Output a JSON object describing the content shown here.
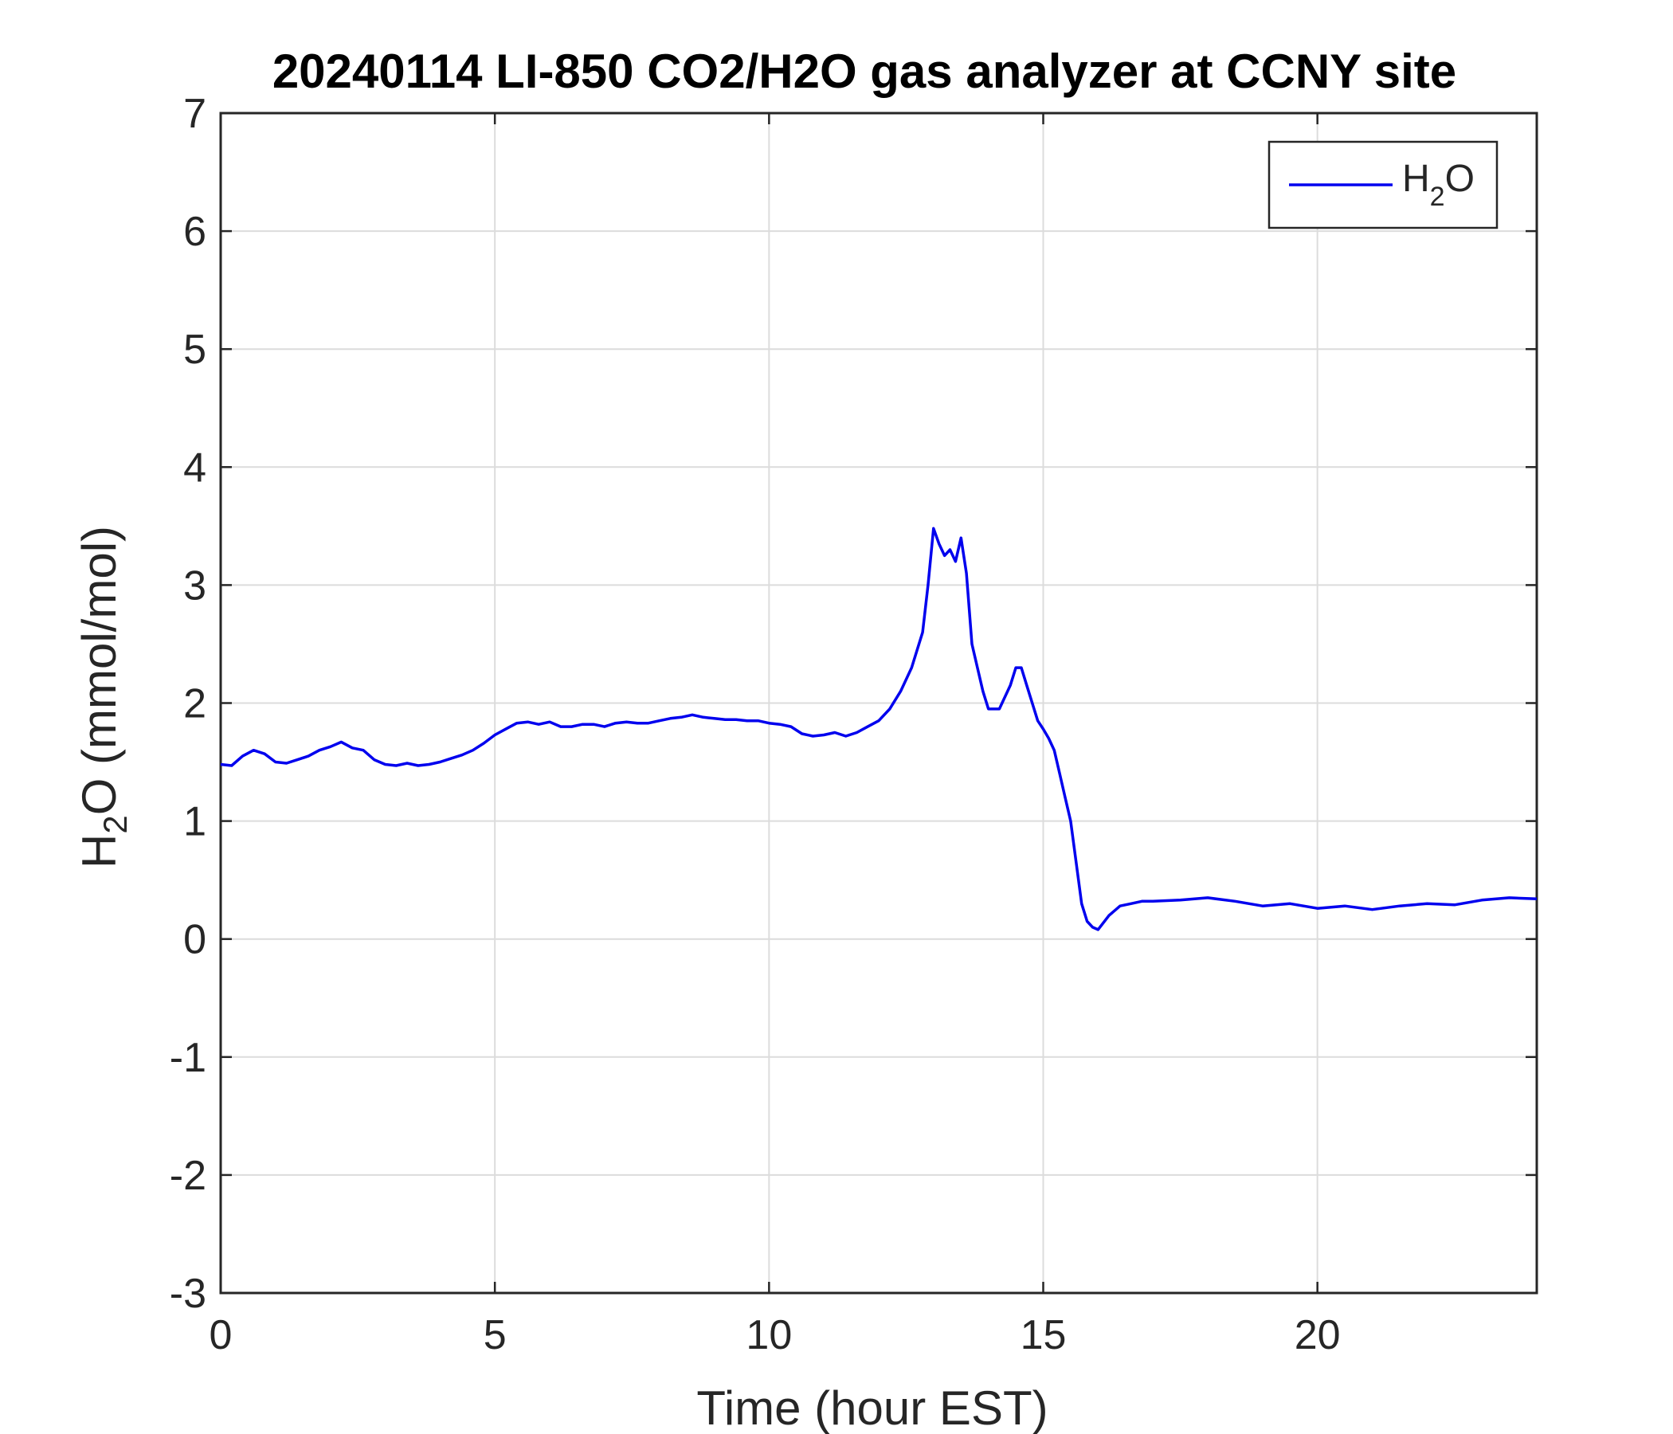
{
  "chart_data": {
    "type": "line",
    "title": "20240114 LI-850 CO2/H2O gas analyzer at CCNY site",
    "xlabel": "Time (hour EST)",
    "ylabel_main": "H",
    "ylabel_sub": "2",
    "ylabel_rest": "O (mmol/mol)",
    "xlim": [
      0,
      24
    ],
    "ylim": [
      -3,
      7
    ],
    "xticks": [
      "0",
      "5",
      "10",
      "15",
      "20"
    ],
    "yticks": [
      "-3",
      "-2",
      "-1",
      "0",
      "1",
      "2",
      "3",
      "4",
      "5",
      "6",
      "7"
    ],
    "grid": true,
    "legend_position": "top-right",
    "line_color": "#0000ee",
    "series": [
      {
        "legend_main": "H",
        "legend_sub": "2",
        "legend_rest": "O",
        "x": [
          0,
          0.2,
          0.4,
          0.6,
          0.8,
          1.0,
          1.2,
          1.4,
          1.6,
          1.8,
          2.0,
          2.2,
          2.4,
          2.6,
          2.8,
          3.0,
          3.2,
          3.4,
          3.6,
          3.8,
          4.0,
          4.2,
          4.4,
          4.6,
          4.8,
          5.0,
          5.2,
          5.4,
          5.6,
          5.8,
          6.0,
          6.2,
          6.4,
          6.6,
          6.8,
          7.0,
          7.2,
          7.4,
          7.6,
          7.8,
          8.0,
          8.2,
          8.4,
          8.6,
          8.8,
          9.0,
          9.2,
          9.4,
          9.6,
          9.8,
          10.0,
          10.2,
          10.4,
          10.6,
          10.8,
          11.0,
          11.2,
          11.4,
          11.6,
          11.8,
          12.0,
          12.2,
          12.4,
          12.6,
          12.8,
          12.9,
          13.0,
          13.1,
          13.2,
          13.3,
          13.4,
          13.5,
          13.6,
          13.7,
          13.8,
          13.9,
          14.0,
          14.2,
          14.4,
          14.5,
          14.6,
          14.7,
          14.8,
          14.9,
          15.0,
          15.1,
          15.2,
          15.3,
          15.4,
          15.5,
          15.6,
          15.7,
          15.8,
          15.9,
          16.0,
          16.2,
          16.4,
          16.6,
          16.8,
          17.0,
          17.5,
          18.0,
          18.5,
          19.0,
          19.5,
          20.0,
          20.5,
          21.0,
          21.5,
          22.0,
          22.5,
          23.0,
          23.5,
          24.0
        ],
        "y": [
          1.48,
          1.47,
          1.55,
          1.6,
          1.57,
          1.5,
          1.49,
          1.52,
          1.55,
          1.6,
          1.63,
          1.67,
          1.62,
          1.6,
          1.52,
          1.48,
          1.47,
          1.49,
          1.47,
          1.48,
          1.5,
          1.53,
          1.56,
          1.6,
          1.66,
          1.73,
          1.78,
          1.83,
          1.84,
          1.82,
          1.84,
          1.8,
          1.8,
          1.82,
          1.82,
          1.8,
          1.83,
          1.84,
          1.83,
          1.83,
          1.85,
          1.87,
          1.88,
          1.9,
          1.88,
          1.87,
          1.86,
          1.86,
          1.85,
          1.85,
          1.83,
          1.82,
          1.8,
          1.74,
          1.72,
          1.73,
          1.75,
          1.72,
          1.75,
          1.8,
          1.85,
          1.95,
          2.1,
          2.3,
          2.6,
          3.0,
          3.48,
          3.35,
          3.25,
          3.3,
          3.2,
          3.4,
          3.1,
          2.5,
          2.3,
          2.1,
          1.95,
          1.95,
          2.15,
          2.3,
          2.3,
          2.15,
          2.0,
          1.85,
          1.78,
          1.7,
          1.6,
          1.4,
          1.2,
          1.0,
          0.65,
          0.3,
          0.15,
          0.1,
          0.08,
          0.2,
          0.28,
          0.3,
          0.32,
          0.32,
          0.33,
          0.35,
          0.32,
          0.28,
          0.3,
          0.26,
          0.28,
          0.25,
          0.28,
          0.3,
          0.29,
          0.33,
          0.35,
          0.34
        ]
      }
    ]
  }
}
